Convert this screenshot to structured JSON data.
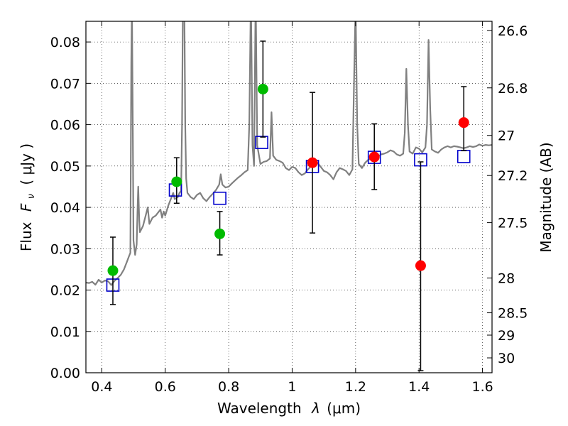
{
  "chart_data": {
    "type": "scatter",
    "xlabel_prefix": "Wavelength",
    "xlabel_symbol": "λ",
    "xlabel_unit": "(μm)",
    "ylabel_prefix": "Flux",
    "ylabel_symbol": "F",
    "ylabel_subscript": "ν",
    "ylabel_unit": "( μJy )",
    "y2label": "Magnitude (AB)",
    "xlim": [
      0.35,
      1.63
    ],
    "ylim": [
      0.0,
      0.085
    ],
    "xticks": [
      0.4,
      0.6,
      0.8,
      1.0,
      1.2,
      1.4,
      1.6
    ],
    "xtick_labels": [
      "0.4",
      "0.6",
      "0.8",
      "1",
      "1.2",
      "1.4",
      "1.6"
    ],
    "yticks": [
      0.0,
      0.01,
      0.02,
      0.03,
      0.04,
      0.05,
      0.06,
      0.07,
      0.08
    ],
    "ytick_labels": [
      "0.00",
      "0.01",
      "0.02",
      "0.03",
      "0.04",
      "0.05",
      "0.06",
      "0.07",
      "0.08"
    ],
    "y2ticks": [
      {
        "label": "26.6",
        "flux": 0.0828
      },
      {
        "label": "26.8",
        "flux": 0.0689
      },
      {
        "label": "27",
        "flux": 0.0574
      },
      {
        "label": "27.2",
        "flux": 0.0477
      },
      {
        "label": "27.5",
        "flux": 0.0363
      },
      {
        "label": "28",
        "flux": 0.0229
      },
      {
        "label": "28.5",
        "flux": 0.0145
      },
      {
        "label": "29",
        "flux": 0.0091
      },
      {
        "label": "30",
        "flux": 0.0036
      }
    ],
    "grid": true,
    "colors": {
      "green": "#00bb00",
      "red": "#ff0000",
      "model": "#0000cc",
      "spectrum": "#808080",
      "errorbar": "#000000"
    },
    "observed_green": [
      {
        "x": 0.435,
        "y": 0.0247,
        "ylo": 0.0165,
        "yhi": 0.0328
      },
      {
        "x": 0.636,
        "y": 0.0462,
        "ylo": 0.041,
        "yhi": 0.052
      },
      {
        "x": 0.772,
        "y": 0.0336,
        "ylo": 0.0285,
        "yhi": 0.039
      },
      {
        "x": 0.908,
        "y": 0.0686,
        "ylo": 0.057,
        "yhi": 0.0802
      }
    ],
    "observed_red": [
      {
        "x": 1.064,
        "y": 0.0508,
        "ylo": 0.0338,
        "yhi": 0.0678
      },
      {
        "x": 1.259,
        "y": 0.0522,
        "ylo": 0.0443,
        "yhi": 0.0602
      },
      {
        "x": 1.405,
        "y": 0.0259,
        "ylo": 0.0005,
        "yhi": 0.051
      },
      {
        "x": 1.541,
        "y": 0.0605,
        "ylo": 0.0537,
        "yhi": 0.0692
      }
    ],
    "model_photometry": [
      {
        "x": 0.435,
        "y": 0.0212
      },
      {
        "x": 0.632,
        "y": 0.0442
      },
      {
        "x": 0.772,
        "y": 0.0422
      },
      {
        "x": 0.904,
        "y": 0.0557
      },
      {
        "x": 1.064,
        "y": 0.0499
      },
      {
        "x": 1.259,
        "y": 0.0521
      },
      {
        "x": 1.405,
        "y": 0.0515
      },
      {
        "x": 1.541,
        "y": 0.0523
      }
    ],
    "spectrum": [
      [
        0.35,
        0.0218
      ],
      [
        0.36,
        0.0217
      ],
      [
        0.37,
        0.022
      ],
      [
        0.38,
        0.0213
      ],
      [
        0.39,
        0.0225
      ],
      [
        0.4,
        0.0218
      ],
      [
        0.41,
        0.0223
      ],
      [
        0.42,
        0.0221
      ],
      [
        0.43,
        0.0212
      ],
      [
        0.44,
        0.0222
      ],
      [
        0.45,
        0.0229
      ],
      [
        0.46,
        0.0237
      ],
      [
        0.47,
        0.025
      ],
      [
        0.48,
        0.027
      ],
      [
        0.485,
        0.028
      ],
      [
        0.49,
        0.029
      ],
      [
        0.493,
        0.075
      ],
      [
        0.495,
        0.09
      ],
      [
        0.498,
        0.058
      ],
      [
        0.5,
        0.032
      ],
      [
        0.505,
        0.0285
      ],
      [
        0.51,
        0.031
      ],
      [
        0.513,
        0.04
      ],
      [
        0.515,
        0.045
      ],
      [
        0.518,
        0.037
      ],
      [
        0.52,
        0.034
      ],
      [
        0.53,
        0.0355
      ],
      [
        0.54,
        0.0385
      ],
      [
        0.545,
        0.04
      ],
      [
        0.55,
        0.036
      ],
      [
        0.56,
        0.0375
      ],
      [
        0.57,
        0.038
      ],
      [
        0.58,
        0.039
      ],
      [
        0.585,
        0.0395
      ],
      [
        0.59,
        0.0375
      ],
      [
        0.595,
        0.039
      ],
      [
        0.6,
        0.038
      ],
      [
        0.61,
        0.0405
      ],
      [
        0.62,
        0.0425
      ],
      [
        0.625,
        0.0435
      ],
      [
        0.63,
        0.042
      ],
      [
        0.64,
        0.0425
      ],
      [
        0.645,
        0.0435
      ],
      [
        0.65,
        0.044
      ],
      [
        0.653,
        0.06
      ],
      [
        0.656,
        0.092
      ],
      [
        0.66,
        0.092
      ],
      [
        0.663,
        0.06
      ],
      [
        0.666,
        0.047
      ],
      [
        0.67,
        0.0435
      ],
      [
        0.68,
        0.0425
      ],
      [
        0.69,
        0.042
      ],
      [
        0.7,
        0.043
      ],
      [
        0.71,
        0.0435
      ],
      [
        0.72,
        0.0422
      ],
      [
        0.73,
        0.0415
      ],
      [
        0.74,
        0.0425
      ],
      [
        0.75,
        0.0433
      ],
      [
        0.76,
        0.0442
      ],
      [
        0.77,
        0.0455
      ],
      [
        0.775,
        0.048
      ],
      [
        0.78,
        0.0455
      ],
      [
        0.79,
        0.0448
      ],
      [
        0.8,
        0.045
      ],
      [
        0.81,
        0.0458
      ],
      [
        0.82,
        0.0465
      ],
      [
        0.83,
        0.0472
      ],
      [
        0.84,
        0.0478
      ],
      [
        0.85,
        0.0485
      ],
      [
        0.86,
        0.049
      ],
      [
        0.865,
        0.06
      ],
      [
        0.87,
        0.092
      ],
      [
        0.875,
        0.055
      ],
      [
        0.88,
        0.05
      ],
      [
        0.885,
        0.092
      ],
      [
        0.89,
        0.055
      ],
      [
        0.9,
        0.0505
      ],
      [
        0.91,
        0.051
      ],
      [
        0.92,
        0.0512
      ],
      [
        0.93,
        0.0518
      ],
      [
        0.935,
        0.063
      ],
      [
        0.94,
        0.0525
      ],
      [
        0.95,
        0.0515
      ],
      [
        0.96,
        0.0512
      ],
      [
        0.97,
        0.0508
      ],
      [
        0.98,
        0.0495
      ],
      [
        0.99,
        0.049
      ],
      [
        1.0,
        0.0498
      ],
      [
        1.01,
        0.0495
      ],
      [
        1.02,
        0.0485
      ],
      [
        1.03,
        0.0478
      ],
      [
        1.04,
        0.0482
      ],
      [
        1.05,
        0.0492
      ],
      [
        1.06,
        0.05
      ],
      [
        1.07,
        0.0505
      ],
      [
        1.08,
        0.0508
      ],
      [
        1.09,
        0.0498
      ],
      [
        1.1,
        0.0488
      ],
      [
        1.11,
        0.0485
      ],
      [
        1.12,
        0.0478
      ],
      [
        1.13,
        0.0468
      ],
      [
        1.14,
        0.0485
      ],
      [
        1.15,
        0.0495
      ],
      [
        1.16,
        0.0492
      ],
      [
        1.17,
        0.0488
      ],
      [
        1.18,
        0.0478
      ],
      [
        1.19,
        0.0492
      ],
      [
        1.195,
        0.07
      ],
      [
        1.2,
        0.089
      ],
      [
        1.205,
        0.06
      ],
      [
        1.21,
        0.0505
      ],
      [
        1.22,
        0.0495
      ],
      [
        1.23,
        0.0508
      ],
      [
        1.24,
        0.0515
      ],
      [
        1.25,
        0.0518
      ],
      [
        1.26,
        0.052
      ],
      [
        1.27,
        0.0522
      ],
      [
        1.28,
        0.0528
      ],
      [
        1.29,
        0.053
      ],
      [
        1.3,
        0.0533
      ],
      [
        1.31,
        0.0538
      ],
      [
        1.32,
        0.0535
      ],
      [
        1.33,
        0.0528
      ],
      [
        1.34,
        0.0525
      ],
      [
        1.35,
        0.053
      ],
      [
        1.355,
        0.058
      ],
      [
        1.36,
        0.0735
      ],
      [
        1.365,
        0.06
      ],
      [
        1.37,
        0.0535
      ],
      [
        1.38,
        0.053
      ],
      [
        1.39,
        0.0545
      ],
      [
        1.4,
        0.0542
      ],
      [
        1.41,
        0.0533
      ],
      [
        1.42,
        0.0545
      ],
      [
        1.425,
        0.06
      ],
      [
        1.43,
        0.0805
      ],
      [
        1.435,
        0.064
      ],
      [
        1.44,
        0.054
      ],
      [
        1.45,
        0.0535
      ],
      [
        1.46,
        0.0532
      ],
      [
        1.47,
        0.054
      ],
      [
        1.48,
        0.0545
      ],
      [
        1.49,
        0.0548
      ],
      [
        1.5,
        0.0545
      ],
      [
        1.51,
        0.0548
      ],
      [
        1.52,
        0.0547
      ],
      [
        1.53,
        0.0545
      ],
      [
        1.54,
        0.0543
      ],
      [
        1.55,
        0.0545
      ],
      [
        1.56,
        0.0548
      ],
      [
        1.57,
        0.0546
      ],
      [
        1.58,
        0.0548
      ],
      [
        1.59,
        0.0552
      ],
      [
        1.6,
        0.0549
      ],
      [
        1.61,
        0.0551
      ],
      [
        1.62,
        0.055
      ],
      [
        1.63,
        0.0551
      ]
    ]
  }
}
